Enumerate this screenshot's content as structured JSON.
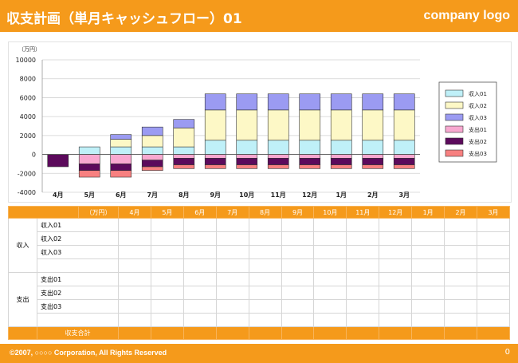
{
  "header": {
    "title": "収支計画（単月キャッシュフロー）01",
    "logo": "company logo"
  },
  "chart_data": {
    "type": "bar",
    "stacked": true,
    "unit_label": "（万円）",
    "categories": [
      "4月",
      "5月",
      "6月",
      "7月",
      "8月",
      "9月",
      "10月",
      "11月",
      "12月",
      "1月",
      "2月",
      "3月"
    ],
    "ylim": [
      -4000,
      10000
    ],
    "yticks": [
      10000,
      8000,
      6000,
      4000,
      2000,
      0,
      -2000,
      -4000
    ],
    "grid": true,
    "legend_position": "right",
    "series": [
      {
        "name": "収入01",
        "color": "#bff0f8",
        "sign": 1,
        "values": [
          0,
          800,
          800,
          800,
          800,
          1500,
          1500,
          1500,
          1500,
          1500,
          1500,
          1500
        ]
      },
      {
        "name": "収入02",
        "color": "#fdf8c6",
        "sign": 1,
        "values": [
          0,
          0,
          800,
          1200,
          2000,
          3200,
          3200,
          3200,
          3200,
          3200,
          3200,
          3200
        ]
      },
      {
        "name": "収入03",
        "color": "#9b9bf2",
        "sign": 1,
        "values": [
          0,
          0,
          500,
          900,
          900,
          1700,
          1700,
          1700,
          1700,
          1700,
          1700,
          1700
        ]
      },
      {
        "name": "支出01",
        "color": "#f8a8d0",
        "sign": -1,
        "values": [
          0,
          1000,
          1000,
          600,
          400,
          400,
          400,
          400,
          400,
          400,
          400,
          400
        ]
      },
      {
        "name": "支出02",
        "color": "#5c0a5c",
        "sign": -1,
        "values": [
          1300,
          700,
          700,
          700,
          700,
          700,
          700,
          700,
          700,
          700,
          700,
          700
        ]
      },
      {
        "name": "支出03",
        "color": "#f78080",
        "sign": -1,
        "values": [
          0,
          700,
          700,
          400,
          400,
          400,
          400,
          400,
          400,
          400,
          400,
          400
        ]
      }
    ]
  },
  "table": {
    "unit": "（万円）",
    "months": [
      "4月",
      "5月",
      "6月",
      "7月",
      "8月",
      "9月",
      "10月",
      "11月",
      "12月",
      "1月",
      "2月",
      "3月"
    ],
    "groups": [
      {
        "label": "収入",
        "rows": [
          "収入01",
          "収入02",
          "収入03"
        ]
      },
      {
        "label": "支出",
        "rows": [
          "支出01",
          "支出02",
          "支出03"
        ]
      }
    ],
    "total_label": "収支合計"
  },
  "footer": {
    "copyright": "©2007, ○○○○ Corporation, All Rights Reserved",
    "page": "0"
  }
}
